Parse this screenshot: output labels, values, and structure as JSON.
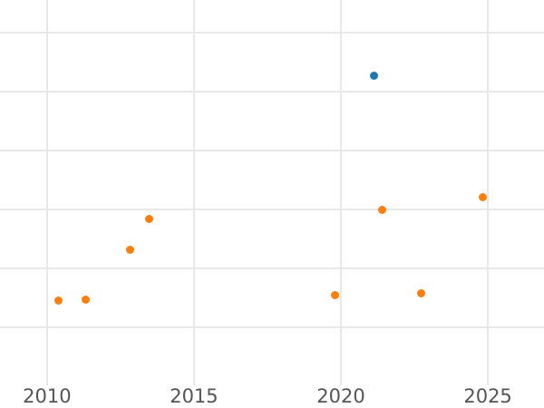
{
  "chart_data": {
    "type": "scatter",
    "title": "",
    "xlabel": "",
    "ylabel": "",
    "grid": true,
    "legend": false,
    "x_tick_labels": [
      "2010",
      "2015",
      "2020",
      "2025"
    ],
    "x_tick_values": [
      2010,
      2015,
      2020,
      2025
    ],
    "xlim": [
      2008.4,
      2026.91
    ],
    "y_axis_note": "y tick labels not visible in cropped image; y values given in gridline units (bottom visible gridline = 0, one gridline spacing = 1)",
    "y_gridline_values": [
      0,
      1,
      2,
      3,
      4,
      5
    ],
    "ylim": [
      -0.98,
      5.56
    ],
    "marker_diameter_px": 9,
    "series": [
      {
        "name": "orange-series",
        "color": "#ff7f0e",
        "points": [
          [
            2010.38,
            0.46
          ],
          [
            2011.33,
            0.47
          ],
          [
            2012.82,
            1.32
          ],
          [
            2013.49,
            1.85
          ],
          [
            2019.79,
            0.55
          ],
          [
            2021.41,
            2.0
          ],
          [
            2022.74,
            0.58
          ],
          [
            2024.84,
            2.22
          ]
        ]
      },
      {
        "name": "blue-series",
        "color": "#1f77b4",
        "points": [
          [
            2021.12,
            4.27
          ]
        ]
      }
    ]
  },
  "style": {
    "background_color": "#ffffff",
    "gridline_color": "#e8e8e8",
    "tick_label_color": "#555555"
  }
}
